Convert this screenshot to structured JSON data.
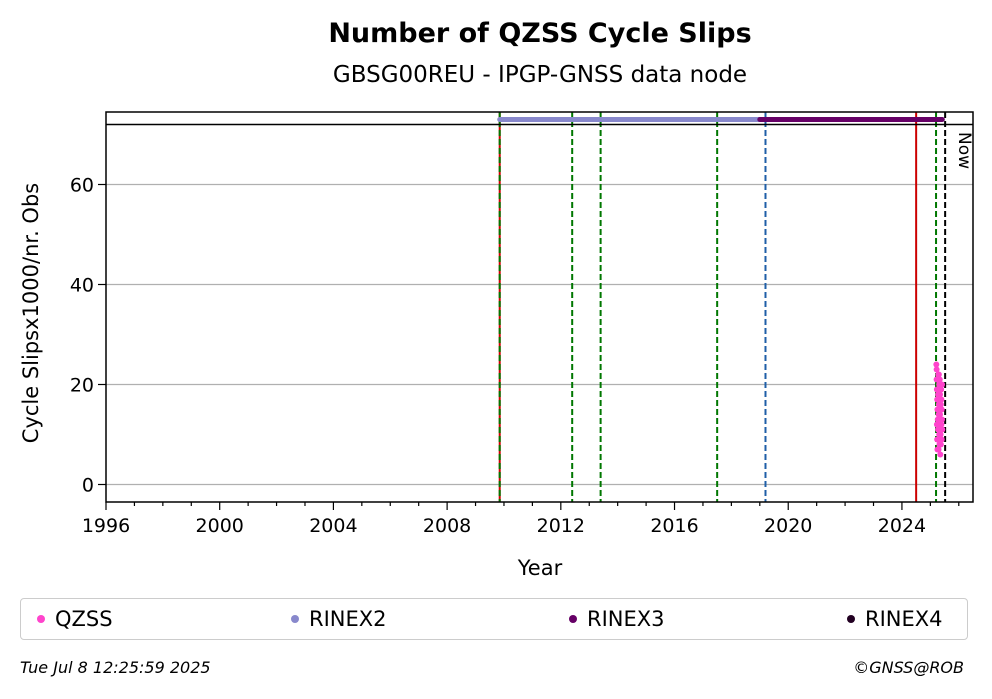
{
  "chart_data": {
    "type": "scatter",
    "title": "Number of QZSS Cycle Slips",
    "subtitle": "GBSG00REU - IPGP-GNSS data node",
    "xlabel": "Year",
    "ylabel": "Cycle Slipsx1000/nr. Obs",
    "xlim": [
      1996,
      2026.5
    ],
    "ylim": [
      -3.5,
      74.5
    ],
    "x_ticks": [
      1996,
      2000,
      2004,
      2008,
      2012,
      2016,
      2020,
      2024
    ],
    "x_tick_labels": [
      "1996",
      "2000",
      "2004",
      "2008",
      "2012",
      "2016",
      "2020",
      "2024"
    ],
    "y_ticks": [
      0,
      20,
      40,
      60
    ],
    "y_tick_labels": [
      "0",
      "20",
      "40",
      "60"
    ],
    "grid": "y",
    "legend_position": "bottom",
    "reference_y": 72,
    "vertical_lines": [
      {
        "x": 2009.85,
        "color": "#cc0000",
        "style": "solid"
      },
      {
        "x": 2009.85,
        "color": "#007700",
        "style": "dashed"
      },
      {
        "x": 2012.4,
        "color": "#007700",
        "style": "dashed"
      },
      {
        "x": 2013.4,
        "color": "#007700",
        "style": "dashed"
      },
      {
        "x": 2017.5,
        "color": "#007700",
        "style": "dashed"
      },
      {
        "x": 2019.2,
        "color": "#1f5fa8",
        "style": "dashed"
      },
      {
        "x": 2024.5,
        "color": "#cc0000",
        "style": "solid"
      },
      {
        "x": 2025.2,
        "color": "#007700",
        "style": "dashed"
      },
      {
        "x": 2025.52,
        "color": "#000000",
        "style": "dashed"
      }
    ],
    "now_label": "Now",
    "now_x": 2025.52,
    "series": [
      {
        "name": "QZSS",
        "color": "#ff44cc",
        "x_range": [
          2025.2,
          2025.42
        ],
        "points": [
          [
            2025.21,
            24
          ],
          [
            2025.22,
            21
          ],
          [
            2025.23,
            19
          ],
          [
            2025.24,
            17
          ],
          [
            2025.25,
            15
          ],
          [
            2025.26,
            13
          ],
          [
            2025.27,
            11
          ],
          [
            2025.28,
            9
          ],
          [
            2025.29,
            7
          ],
          [
            2025.3,
            22
          ],
          [
            2025.31,
            20
          ],
          [
            2025.32,
            18
          ],
          [
            2025.33,
            16
          ],
          [
            2025.34,
            14
          ],
          [
            2025.35,
            12
          ],
          [
            2025.36,
            10
          ],
          [
            2025.37,
            8
          ],
          [
            2025.38,
            19
          ],
          [
            2025.39,
            17
          ],
          [
            2025.4,
            15
          ],
          [
            2025.41,
            13
          ],
          [
            2025.42,
            11
          ],
          [
            2025.22,
            23
          ],
          [
            2025.24,
            9
          ],
          [
            2025.27,
            18
          ],
          [
            2025.29,
            14
          ],
          [
            2025.31,
            10
          ],
          [
            2025.33,
            21
          ],
          [
            2025.35,
            6
          ],
          [
            2025.37,
            16
          ],
          [
            2025.39,
            12
          ],
          [
            2025.41,
            20
          ],
          [
            2025.25,
            7
          ],
          [
            2025.28,
            22
          ],
          [
            2025.32,
            8
          ],
          [
            2025.36,
            19
          ],
          [
            2025.4,
            9
          ],
          [
            2025.23,
            12
          ],
          [
            2025.3,
            16
          ],
          [
            2025.34,
            18
          ]
        ]
      },
      {
        "name": "RINEX2",
        "color": "#8888cc",
        "y": 73,
        "x_range": [
          2009.85,
          2019.2
        ]
      },
      {
        "name": "RINEX3",
        "color": "#660066",
        "y": 73,
        "x_range": [
          2019.0,
          2025.42
        ]
      },
      {
        "name": "RINEX4",
        "color": "#220022",
        "y": 73,
        "x_range": []
      }
    ]
  },
  "footer": {
    "timestamp": "Tue Jul  8 12:25:59 2025",
    "credit": "©GNSS@ROB"
  }
}
